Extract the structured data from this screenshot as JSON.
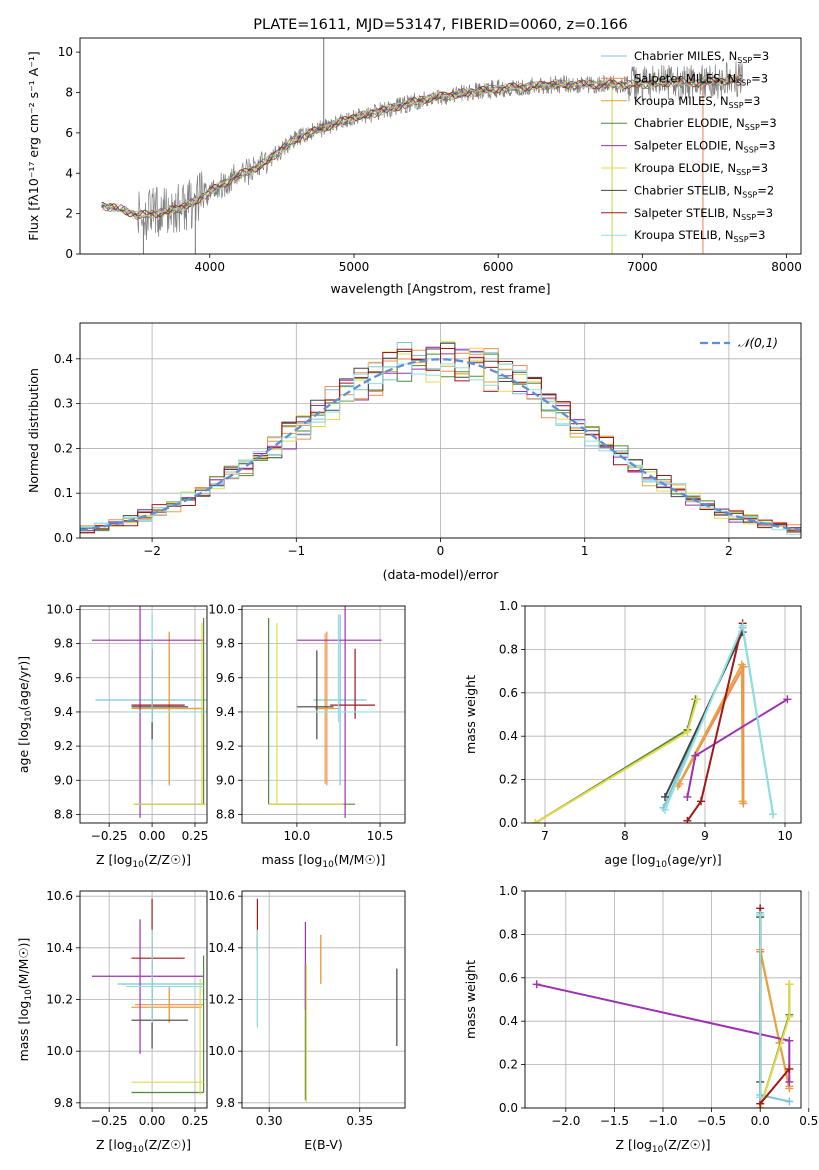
{
  "colors": {
    "spectrum": "#808080",
    "gaussian": "#5b8fd6",
    "models": [
      "#7fc3d8",
      "#f08b5a",
      "#e8a23c",
      "#4e8a3a",
      "#9b30b0",
      "#e6d84a",
      "#444444",
      "#a01818",
      "#8fe0e0"
    ]
  },
  "chart_data": [
    {
      "id": "spectrum",
      "type": "line",
      "title": "PLATE=1611, MJD=53147, FIBERID=0060, z=0.166",
      "xlabel": "wavelength [Angstrom, rest frame]",
      "ylabel": "Flux [fλ10⁻¹⁷ erg cm⁻² s⁻¹ A⁻¹]",
      "xlim": [
        3100,
        8100
      ],
      "ylim": [
        0,
        10.7
      ],
      "xticks": [
        "4000",
        "5000",
        "6000",
        "7000",
        "8000"
      ],
      "yticks": [
        "0",
        "2",
        "4",
        "6",
        "8",
        "10"
      ],
      "legend_position": "upper-right",
      "legend": [
        "Chabrier MILES, N_SSP=3",
        "Salpeter MILES, N_SSP=3",
        "Kroupa MILES, N_SSP=3",
        "Chabrier ELODIE, N_SSP=3",
        "Salpeter ELODIE, N_SSP=3",
        "Kroupa ELODIE, N_SSP=3",
        "Chabrier STELIB, N_SSP=2",
        "Salpeter STELIB, N_SSP=3",
        "Kroupa STELIB, N_SSP=3"
      ],
      "continuum": {
        "x": [
          3250,
          3400,
          3500,
          3600,
          3700,
          3800,
          3900,
          4000,
          4100,
          4200,
          4300,
          4400,
          4500,
          4600,
          4700,
          4800,
          4900,
          5000,
          5100,
          5200,
          5300,
          5400,
          5500,
          5600,
          5700,
          5800,
          5900,
          6000,
          6200,
          6400,
          6600,
          6800,
          7000,
          7200,
          7400,
          7600,
          7700
        ],
        "y": [
          2.4,
          2.2,
          1.9,
          2.0,
          2.1,
          2.3,
          2.6,
          3.1,
          3.5,
          3.9,
          4.2,
          4.6,
          5.2,
          5.7,
          6.0,
          6.3,
          6.5,
          6.8,
          6.9,
          7.1,
          7.3,
          7.5,
          7.7,
          7.8,
          7.9,
          8.0,
          8.1,
          8.2,
          8.3,
          8.4,
          8.4,
          8.4,
          8.4,
          8.5,
          8.5,
          8.6,
          8.7
        ]
      },
      "features": [
        {
          "x": 3540,
          "y": 0
        },
        {
          "x": 3900,
          "y": 0
        },
        {
          "x": 4790,
          "y": 10.7
        },
        {
          "x": 6790,
          "y": 0
        },
        {
          "x": 7420,
          "y": 0
        }
      ]
    },
    {
      "id": "residuals",
      "type": "histogram",
      "xlabel": "(data-model)/error",
      "ylabel": "Normed distribution",
      "xlim": [
        -2.5,
        2.5
      ],
      "ylim": [
        0,
        0.48
      ],
      "xticks": [
        "−2",
        "−1",
        "0",
        "1",
        "2"
      ],
      "yticks": [
        "0.0",
        "0.1",
        "0.2",
        "0.3",
        "0.4"
      ],
      "legend": [
        "𝒩(0,1)"
      ],
      "legend_position": "upper-right",
      "bin_width": 0.1,
      "series_count": 9
    },
    {
      "id": "age-vs-Z",
      "type": "errorbar",
      "xlabel": "Z [log10(Z/Z☉)]",
      "ylabel": "age  [log10(age/yr)]",
      "xlim": [
        -0.42,
        0.32
      ],
      "ylim": [
        8.75,
        10.02
      ],
      "xticks": [
        "−0.25",
        "0.00",
        "0.25"
      ],
      "yticks": [
        "8.8",
        "9.0",
        "9.2",
        "9.4",
        "9.6",
        "9.8",
        "10.0"
      ],
      "points": [
        {
          "x": 0.0,
          "y": 9.47,
          "xerr": [
            0.33,
            0.33
          ],
          "yerr": [
            0.5,
            0.5
          ],
          "c": 0
        },
        {
          "x": 0.1,
          "y": 9.42,
          "xerr": [
            0.2,
            0.2
          ],
          "yerr": [
            0.45,
            0.45
          ],
          "c": 1
        },
        {
          "x": 0.1,
          "y": 9.42,
          "xerr": [
            0.22,
            0.19
          ],
          "yerr": [
            0.44,
            0.44
          ],
          "c": 2
        },
        {
          "x": 0.3,
          "y": 8.86,
          "xerr": [
            0.4,
            0.01
          ],
          "yerr": [
            0.0,
            1.09
          ],
          "c": 3
        },
        {
          "x": -0.07,
          "y": 9.82,
          "xerr": [
            0.28,
            0.37
          ],
          "yerr": [
            1.04,
            0.2
          ],
          "c": 4
        },
        {
          "x": 0.29,
          "y": 8.86,
          "xerr": [
            0.4,
            0.02
          ],
          "yerr": [
            0.0,
            1.06
          ],
          "c": 5
        },
        {
          "x": 0.0,
          "y": 9.43,
          "xerr": [
            0.12,
            0.21
          ],
          "yerr": [
            0.19,
            0.33
          ],
          "c": 6
        },
        {
          "x": 0.0,
          "y": 9.44,
          "xerr": [
            0.12,
            0.19
          ],
          "yerr": [
            0.08,
            0.33
          ],
          "c": 7
        },
        {
          "x": 0.0,
          "y": 9.4,
          "xerr": [
            0.15,
            0.3
          ],
          "yerr": [
            0.06,
            0.57
          ],
          "c": 8
        }
      ]
    },
    {
      "id": "age-vs-mass",
      "type": "errorbar",
      "xlabel": "mass [log10(M/M☉)]",
      "ylabel": "",
      "xlim": [
        9.67,
        10.65
      ],
      "ylim": [
        8.75,
        10.02
      ],
      "xticks": [
        "10.0",
        "10.5"
      ],
      "yticks": [
        "8.8",
        "9.0",
        "9.2",
        "9.4",
        "9.6",
        "9.8",
        "10.0"
      ],
      "points": [
        {
          "x": 10.26,
          "y": 9.47,
          "xerr": [
            0.16,
            0.16
          ],
          "yerr": [
            0.5,
            0.5
          ],
          "c": 0
        },
        {
          "x": 10.18,
          "y": 9.42,
          "xerr": [
            0.07,
            0.07
          ],
          "yerr": [
            0.45,
            0.45
          ],
          "c": 1
        },
        {
          "x": 10.17,
          "y": 9.42,
          "xerr": [
            0.06,
            0.06
          ],
          "yerr": [
            0.44,
            0.44
          ],
          "c": 2
        },
        {
          "x": 9.83,
          "y": 8.86,
          "xerr": [
            0.0,
            0.52
          ],
          "yerr": [
            0.0,
            1.09
          ],
          "c": 3
        },
        {
          "x": 10.29,
          "y": 9.82,
          "xerr": [
            0.29,
            0.22
          ],
          "yerr": [
            1.04,
            0.2
          ],
          "c": 4
        },
        {
          "x": 9.88,
          "y": 8.86,
          "xerr": [
            0.05,
            0.4
          ],
          "yerr": [
            0.0,
            1.06
          ],
          "c": 5
        },
        {
          "x": 10.12,
          "y": 9.43,
          "xerr": [
            0.12,
            0.1
          ],
          "yerr": [
            0.19,
            0.33
          ],
          "c": 6
        },
        {
          "x": 10.35,
          "y": 9.44,
          "xerr": [
            0.15,
            0.12
          ],
          "yerr": [
            0.08,
            0.33
          ],
          "c": 7
        },
        {
          "x": 10.25,
          "y": 9.4,
          "xerr": [
            0.14,
            0.22
          ],
          "yerr": [
            0.06,
            0.57
          ],
          "c": 8
        }
      ]
    },
    {
      "id": "weight-vs-age",
      "type": "line",
      "xlabel": "age  [log10(age/yr)]",
      "ylabel": "mass weight",
      "xlim": [
        6.75,
        10.2
      ],
      "ylim": [
        0,
        1.0
      ],
      "xticks": [
        "7",
        "8",
        "9",
        "10"
      ],
      "yticks": [
        "0.0",
        "0.2",
        "0.4",
        "0.6",
        "0.8",
        "1.0"
      ],
      "series": [
        {
          "x": [
            8.48,
            9.47,
            9.85
          ],
          "y": [
            0.07,
            0.9,
            0.04
          ],
          "c": 0
        },
        {
          "x": [
            8.68,
            9.48,
            9.48
          ],
          "y": [
            0.18,
            0.72,
            0.09
          ],
          "c": 1
        },
        {
          "x": [
            8.66,
            9.46,
            9.47
          ],
          "y": [
            0.17,
            0.73,
            0.1
          ],
          "c": 2
        },
        {
          "x": [
            6.88,
            8.78,
            8.88
          ],
          "y": [
            0.0,
            0.43,
            0.57
          ],
          "c": 3
        },
        {
          "x": [
            8.78,
            8.88,
            10.03
          ],
          "y": [
            0.12,
            0.31,
            0.57
          ],
          "c": 4
        },
        {
          "x": [
            6.88,
            8.78,
            8.9
          ],
          "y": [
            0.0,
            0.42,
            0.57
          ],
          "c": 5
        },
        {
          "x": [
            8.5,
            9.47
          ],
          "y": [
            0.12,
            0.88
          ],
          "c": 6
        },
        {
          "x": [
            8.78,
            8.95,
            9.47
          ],
          "y": [
            0.01,
            0.1,
            0.92
          ],
          "c": 7
        },
        {
          "x": [
            8.5,
            9.47,
            9.85
          ],
          "y": [
            0.06,
            0.91,
            0.04
          ],
          "c": 8
        }
      ]
    },
    {
      "id": "mass-vs-Z",
      "type": "errorbar",
      "xlabel": "Z [log10(Z/Z☉)]",
      "ylabel": "mass [log10(M/M☉)]",
      "xlim": [
        -0.42,
        0.32
      ],
      "ylim": [
        9.78,
        10.62
      ],
      "xticks": [
        "−0.25",
        "0.00",
        "0.25"
      ],
      "yticks": [
        "9.8",
        "10.0",
        "10.2",
        "10.4",
        "10.6"
      ],
      "points": [
        {
          "x": 0.0,
          "y": 10.26,
          "xerr": [
            0.2,
            0.3
          ],
          "yerr": [
            0.16,
            0.16
          ],
          "c": 0
        },
        {
          "x": 0.1,
          "y": 10.18,
          "xerr": [
            0.2,
            0.2
          ],
          "yerr": [
            0.07,
            0.07
          ],
          "c": 1
        },
        {
          "x": 0.1,
          "y": 10.17,
          "xerr": [
            0.22,
            0.19
          ],
          "yerr": [
            0.06,
            0.06
          ],
          "c": 2
        },
        {
          "x": 0.3,
          "y": 9.84,
          "xerr": [
            0.42,
            0.0
          ],
          "yerr": [
            0.0,
            0.53
          ],
          "c": 3
        },
        {
          "x": -0.07,
          "y": 10.29,
          "xerr": [
            0.28,
            0.37
          ],
          "yerr": [
            0.3,
            0.22
          ],
          "c": 4
        },
        {
          "x": 0.28,
          "y": 9.88,
          "xerr": [
            0.4,
            0.02
          ],
          "yerr": [
            0.05,
            0.4
          ],
          "c": 5
        },
        {
          "x": 0.0,
          "y": 10.12,
          "xerr": [
            0.12,
            0.21
          ],
          "yerr": [
            0.11,
            0.1
          ],
          "c": 6
        },
        {
          "x": 0.0,
          "y": 10.36,
          "xerr": [
            0.12,
            0.19
          ],
          "yerr": [
            0.15,
            0.23
          ],
          "c": 7
        },
        {
          "x": 0.0,
          "y": 10.25,
          "xerr": [
            0.15,
            0.3
          ],
          "yerr": [
            0.14,
            0.22
          ],
          "c": 8
        }
      ]
    },
    {
      "id": "mass-vs-ebv",
      "type": "errorbar",
      "xlabel": "E(B-V)",
      "ylabel": "",
      "xlim": [
        0.285,
        0.375
      ],
      "ylim": [
        9.78,
        10.62
      ],
      "xticks": [
        "0.30",
        "0.35"
      ],
      "yticks": [
        "9.8",
        "10.0",
        "10.2",
        "10.4",
        "10.6"
      ],
      "points": [
        {
          "x": 0.2935,
          "y": 10.3,
          "xerr": [
            0,
            0
          ],
          "yerr": [
            0.2,
            0.15
          ],
          "c": 0
        },
        {
          "x": 0.3285,
          "y": 10.33,
          "xerr": [
            0,
            0
          ],
          "yerr": [
            0.07,
            0.12
          ],
          "c": 1
        },
        {
          "x": 0.3285,
          "y": 10.33,
          "xerr": [
            0,
            0
          ],
          "yerr": [
            0.06,
            0.12
          ],
          "c": 2
        },
        {
          "x": 0.32,
          "y": 10.1,
          "xerr": [
            0,
            0
          ],
          "yerr": [
            0.29,
            0.24
          ],
          "c": 3
        },
        {
          "x": 0.32,
          "y": 10.28,
          "xerr": [
            0,
            0
          ],
          "yerr": [
            0.12,
            0.22
          ],
          "c": 4
        },
        {
          "x": 0.3205,
          "y": 10.08,
          "xerr": [
            0,
            0
          ],
          "yerr": [
            0.28,
            0.26
          ],
          "c": 5
        },
        {
          "x": 0.3705,
          "y": 10.17,
          "xerr": [
            0,
            0
          ],
          "yerr": [
            0.15,
            0.15
          ],
          "c": 6
        },
        {
          "x": 0.2935,
          "y": 10.45,
          "xerr": [
            0,
            0
          ],
          "yerr": [
            0.06,
            0.14
          ],
          "c": 7
        },
        {
          "x": 0.2935,
          "y": 10.25,
          "xerr": [
            0,
            0
          ],
          "yerr": [
            0.16,
            0.22
          ],
          "c": 8
        }
      ]
    },
    {
      "id": "weight-vs-Z",
      "type": "line",
      "xlabel": "Z [log10(Z/Z☉)]",
      "ylabel": "mass weight",
      "xlim": [
        -2.42,
        0.42
      ],
      "ylim": [
        0,
        1.0
      ],
      "xticks": [
        "−2.0",
        "−1.5",
        "−1.0",
        "−0.5",
        "0.0",
        "0.5"
      ],
      "yticks": [
        "0.0",
        "0.2",
        "0.4",
        "0.6",
        "0.8",
        "1.0"
      ],
      "series": [
        {
          "x": [
            0.0,
            0.0,
            0.3
          ],
          "y": [
            0.9,
            0.06,
            0.03
          ],
          "c": 0
        },
        {
          "x": [
            0.0,
            0.2,
            0.3
          ],
          "y": [
            0.72,
            0.3,
            0.09
          ],
          "c": 1
        },
        {
          "x": [
            0.0,
            0.2,
            0.3
          ],
          "y": [
            0.73,
            0.3,
            0.1
          ],
          "c": 2
        },
        {
          "x": [
            0.0,
            0.3,
            0.3
          ],
          "y": [
            0.0,
            0.43,
            0.57
          ],
          "c": 3
        },
        {
          "x": [
            -2.3,
            0.3,
            0.3
          ],
          "y": [
            0.57,
            0.31,
            0.12
          ],
          "c": 4
        },
        {
          "x": [
            0.0,
            0.3,
            0.3
          ],
          "y": [
            0.0,
            0.42,
            0.57
          ],
          "c": 5
        },
        {
          "x": [
            0.0,
            0.0
          ],
          "y": [
            0.88,
            0.12
          ],
          "c": 6
        },
        {
          "x": [
            0.0,
            0.0,
            0.3
          ],
          "y": [
            0.92,
            0.02,
            0.18
          ],
          "c": 7
        },
        {
          "x": [
            0.0,
            0.0
          ],
          "y": [
            0.89,
            0.05
          ],
          "c": 8
        }
      ]
    }
  ]
}
